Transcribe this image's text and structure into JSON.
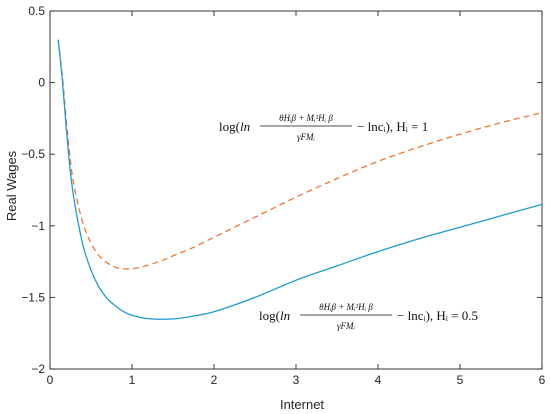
{
  "chart_data": {
    "type": "line",
    "xlabel": "Internet",
    "ylabel": "Real Wages",
    "xlim": [
      0,
      6
    ],
    "ylim": [
      -2,
      0.5
    ],
    "x_ticks": [
      0,
      1,
      2,
      3,
      4,
      5,
      6
    ],
    "y_ticks": [
      -2,
      -1.5,
      -1,
      -0.5,
      0,
      0.5
    ],
    "x_tick_labels": [
      "0",
      "1",
      "2",
      "3",
      "4",
      "5",
      "6"
    ],
    "y_tick_labels": [
      "−2",
      "−1.5",
      "−1",
      "−0.5",
      "0",
      "0.5"
    ],
    "grid": false,
    "series": [
      {
        "id": "hi-1",
        "style": "dashed",
        "color": "#ee7733",
        "x": [
          0.1,
          0.15,
          0.2,
          0.25,
          0.3,
          0.4,
          0.5,
          0.6,
          0.7,
          0.8,
          0.9,
          1.0,
          1.1,
          1.2,
          1.3,
          1.4,
          1.5,
          1.75,
          2.0,
          2.5,
          3.0,
          3.5,
          4.0,
          4.5,
          5.0,
          5.5,
          6.0
        ],
        "y": [
          0.3,
          0.05,
          -0.27,
          -0.55,
          -0.74,
          -0.98,
          -1.12,
          -1.21,
          -1.26,
          -1.29,
          -1.3,
          -1.3,
          -1.29,
          -1.275,
          -1.255,
          -1.235,
          -1.21,
          -1.15,
          -1.08,
          -0.94,
          -0.8,
          -0.67,
          -0.55,
          -0.45,
          -0.36,
          -0.28,
          -0.21
        ],
        "annotation": {
          "pre": "log(",
          "ln": "ln",
          "numerator": "θHᵢβ + Mᵢ²Hᵢ β",
          "denominator": "γFMᵢ",
          "post": "− lncᵢ), Hᵢ = 1"
        }
      },
      {
        "id": "hi-0.5",
        "style": "solid",
        "color": "#1f9bd4",
        "x": [
          0.1,
          0.15,
          0.2,
          0.25,
          0.3,
          0.4,
          0.5,
          0.6,
          0.7,
          0.8,
          0.9,
          1.0,
          1.1,
          1.2,
          1.3,
          1.4,
          1.5,
          1.6,
          1.75,
          2.0,
          2.5,
          3.0,
          3.5,
          4.0,
          4.5,
          5.0,
          5.5,
          6.0
        ],
        "y": [
          0.3,
          0.02,
          -0.33,
          -0.63,
          -0.84,
          -1.13,
          -1.31,
          -1.43,
          -1.51,
          -1.56,
          -1.6,
          -1.625,
          -1.64,
          -1.648,
          -1.652,
          -1.652,
          -1.65,
          -1.645,
          -1.63,
          -1.6,
          -1.5,
          -1.38,
          -1.28,
          -1.18,
          -1.09,
          -1.01,
          -0.93,
          -0.85
        ],
        "annotation": {
          "pre": "log(",
          "ln": "ln",
          "numerator": "θHᵢβ + Mᵢ²Hᵢ β",
          "denominator": "γFMᵢ",
          "post": "− lncᵢ), Hᵢ = 0.5"
        }
      }
    ]
  }
}
